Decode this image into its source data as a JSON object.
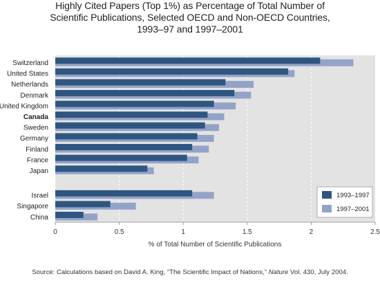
{
  "title_lines": [
    "Highly Cited Papers (Top 1%) as Percentage of Total Number of",
    "Scientific Publications, Selected OECD and Non-OECD Countries,",
    "1993–97 and 1997–2001"
  ],
  "source": {
    "prefix": "Source: Calculations based on David A. King, “The Scientific Impact of Nations,” ",
    "journal": "Nature",
    "suffix": " Vol. 430, July 2004."
  },
  "colors": {
    "series_1993": "#2e5680",
    "series_1997": "#93a3c8",
    "plot_background": "#e3e3e4",
    "gridline": "#ffffff"
  },
  "chart_data": {
    "type": "bar",
    "orientation": "horizontal",
    "xlabel": "% of Total Number of Scientific Publications",
    "xlim": [
      0,
      2.5
    ],
    "xticks": [
      0,
      0.5,
      1,
      1.5,
      2,
      2.5
    ],
    "xtick_labels": [
      "0",
      "0.5",
      "1",
      "1.5",
      "2",
      "2.5"
    ],
    "grid": "vertical dashed",
    "legend_position": "bottom-right",
    "categories": [
      "Switzerland",
      "United States",
      "Netherlands",
      "Denmark",
      "United Kingdom",
      "Canada",
      "Sweden",
      "Germany",
      "Finland",
      "France",
      "Japan",
      "Israel",
      "Singapore",
      "China"
    ],
    "bold_categories": [
      "Canada"
    ],
    "series": [
      {
        "name": "1993–1997",
        "values": [
          2.07,
          1.82,
          1.33,
          1.4,
          1.24,
          1.19,
          1.17,
          1.11,
          1.07,
          1.03,
          0.72,
          1.07,
          0.43,
          0.22
        ]
      },
      {
        "name": "1997–2001",
        "values": [
          2.33,
          1.87,
          1.55,
          1.53,
          1.41,
          1.32,
          1.28,
          1.24,
          1.2,
          1.12,
          0.77,
          1.24,
          0.63,
          0.33
        ]
      }
    ]
  }
}
